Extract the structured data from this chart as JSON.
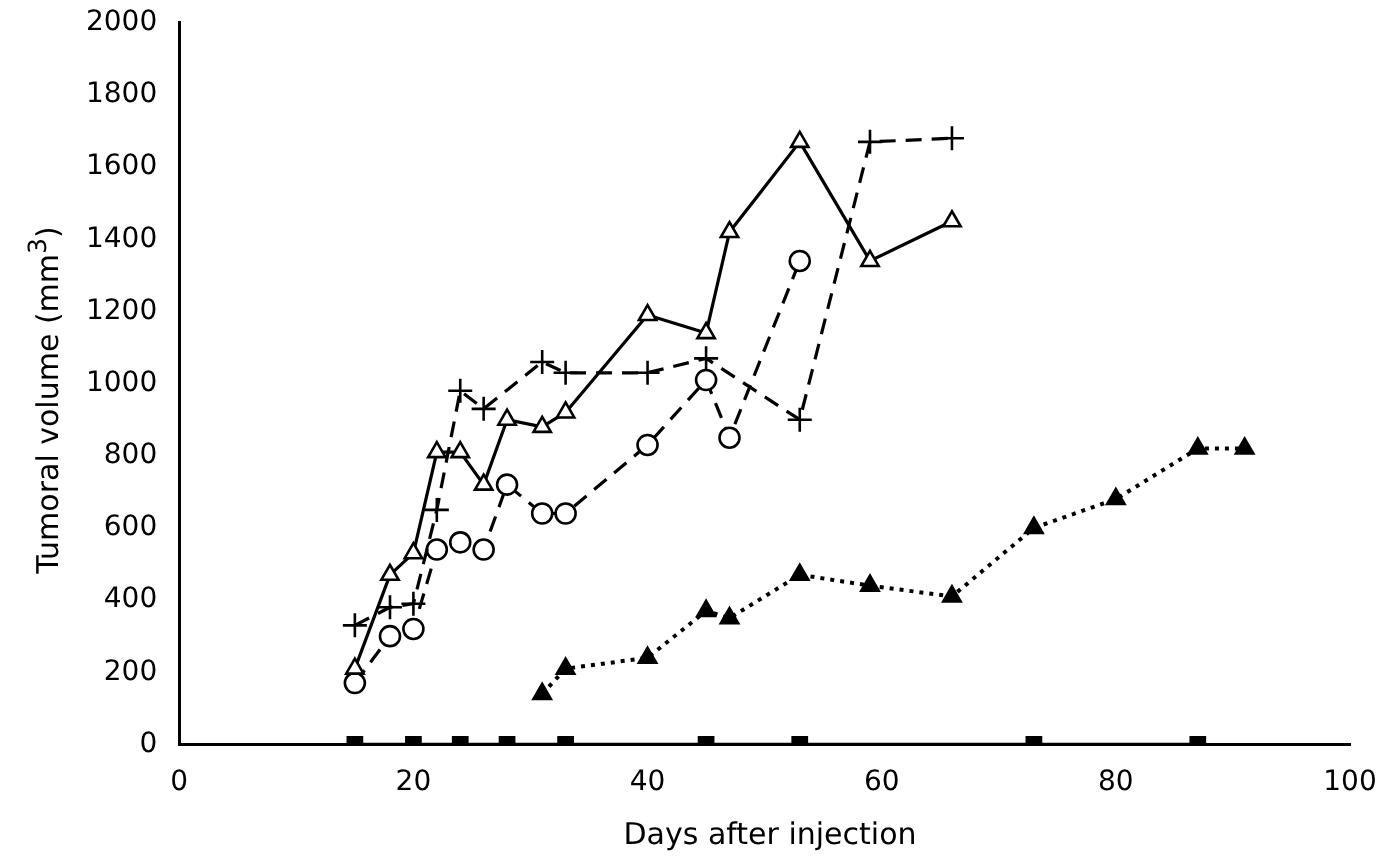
{
  "chart_data": {
    "type": "line",
    "xlabel": "Days after injection",
    "ylabel": "Tumoral volume (mm$^{3}$)",
    "xlim": [
      0,
      100
    ],
    "xticks": [
      0,
      20,
      40,
      60,
      80,
      100
    ],
    "ylim": [
      0,
      2000
    ],
    "yticks": [
      0,
      200,
      400,
      600,
      800,
      1000,
      1200,
      1400,
      1600,
      1800,
      2000
    ],
    "grid": false,
    "legend": false,
    "series": [
      {
        "color": "#000000",
        "marker": "triangle",
        "line_style": "solid",
        "x": [
          15,
          18,
          20,
          22,
          24,
          26,
          28,
          31,
          33,
          40,
          45,
          47,
          53,
          59,
          66
        ],
        "values": [
          210,
          470,
          530,
          810,
          810,
          720,
          900,
          880,
          920,
          1190,
          1140,
          1420,
          1670,
          1340,
          1450
        ]
      },
      {
        "color": "#000000",
        "marker": "cross",
        "line_style": "dashed",
        "x": [
          15,
          18,
          20,
          22,
          24,
          26,
          31,
          33,
          40,
          45,
          53,
          59,
          66
        ],
        "values": [
          330,
          380,
          390,
          650,
          980,
          930,
          1060,
          1030,
          1030,
          1070,
          900,
          1670,
          1680
        ]
      },
      {
        "color": "#000000",
        "marker": "circle",
        "line_style": "dashed",
        "x": [
          15,
          18,
          20,
          22,
          24,
          26,
          28,
          31,
          33,
          40,
          45,
          47,
          53
        ],
        "values": [
          170,
          300,
          320,
          540,
          560,
          540,
          720,
          640,
          640,
          830,
          1010,
          850,
          1340
        ]
      },
      {
        "color": "#000000",
        "marker": "triangle",
        "line_style": "dotted",
        "x": [
          31,
          33,
          40,
          45,
          47,
          53,
          59,
          66,
          73,
          80,
          87,
          91
        ],
        "values": [
          140,
          210,
          240,
          370,
          350,
          470,
          440,
          410,
          600,
          680,
          820,
          820
        ]
      },
      {
        "color": "#000000",
        "marker": "square",
        "line_style": "solid",
        "x": [
          15,
          20,
          24,
          28,
          33,
          45,
          53,
          73,
          87
        ],
        "values": [
          0,
          0,
          0,
          0,
          0,
          0,
          0,
          0,
          0
        ]
      }
    ]
  }
}
